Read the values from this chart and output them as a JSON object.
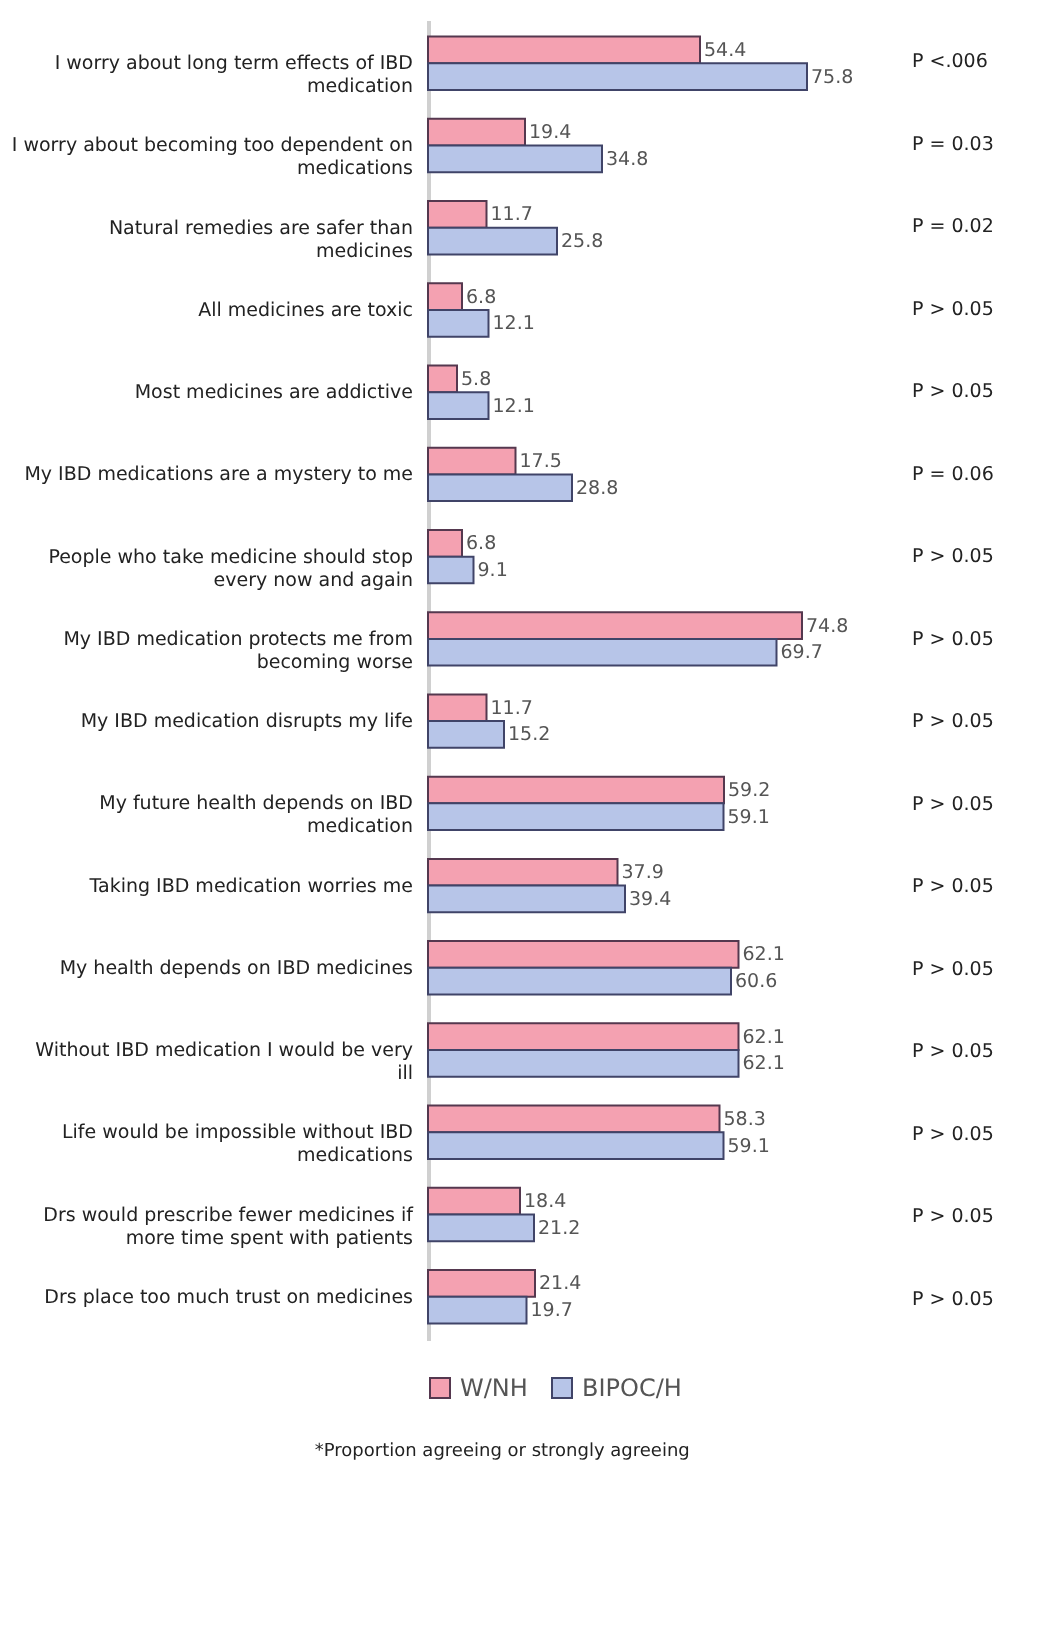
{
  "chart_data": {
    "type": "bar",
    "orientation": "horizontal",
    "data_labels": true,
    "legend": "bottom",
    "grid": false,
    "categories": [
      "I worry about long term effects of IBD medication",
      "I worry about becoming too dependent on medications",
      "Natural remedies are safer than medicines",
      "All medicines are toxic",
      "Most medicines are addictive",
      "My IBD medications are a mystery to me",
      "People who take medicine should stop every now and again",
      "My IBD medication protects me from becoming worse",
      "My IBD medication disrupts my life",
      "My future health depends on IBD medication",
      "Taking IBD medication worries me",
      "My health depends on IBD medicines",
      "Without IBD medication I would be very ill",
      "Life would be impossible without IBD medications",
      "Drs would prescribe fewer medicines if more time spent with patients",
      "Drs place too much trust on medicines"
    ],
    "series": [
      {
        "name": "W/NH",
        "color": "#f4a1b1",
        "values": [
          54.4,
          19.4,
          11.7,
          6.8,
          5.8,
          17.5,
          6.8,
          74.8,
          11.7,
          59.2,
          37.9,
          62.1,
          62.1,
          58.3,
          18.4,
          21.4
        ]
      },
      {
        "name": "BIPOC/H",
        "color": "#b7c5e8",
        "values": [
          75.8,
          34.8,
          25.8,
          12.1,
          12.1,
          28.8,
          9.1,
          69.7,
          15.2,
          59.1,
          39.4,
          60.6,
          62.1,
          59.1,
          21.2,
          19.7
        ]
      }
    ],
    "annotations": [
      "P <.006",
      "P = 0.03",
      "P = 0.02",
      "P > 0.05",
      "P > 0.05",
      "P = 0.06",
      "P > 0.05",
      "P > 0.05",
      "P > 0.05",
      "P > 0.05",
      "P > 0.05",
      "P > 0.05",
      "P > 0.05",
      "P > 0.05",
      "P > 0.05",
      "P > 0.05",
      "*Proportion agreeing or strongly agreeing"
    ]
  }
}
